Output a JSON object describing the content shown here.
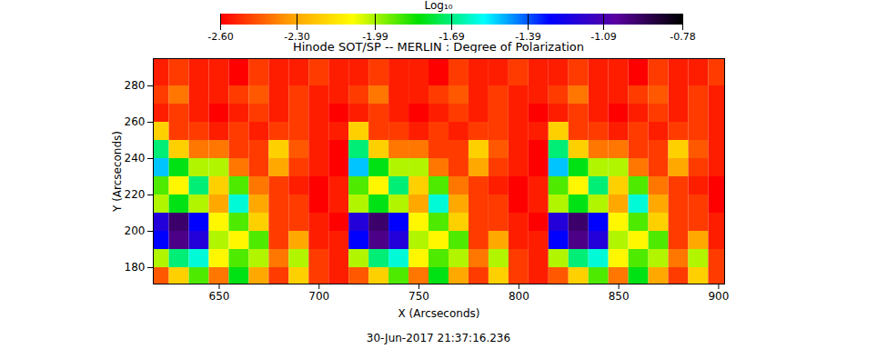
{
  "chart_data": {
    "type": "heatmap",
    "title": "Hinode SOT/SP -- MERLIN : Degree of Polarization",
    "x_label": "X (Arcseconds)",
    "y_label": "Y (Arcseconds)",
    "caption": "30-Jun-2017 21:37:16.236",
    "xlim": [
      617,
      903
    ],
    "ylim": [
      171,
      295
    ],
    "xticks": [
      650,
      700,
      750,
      800,
      850,
      900
    ],
    "yticks": [
      180,
      200,
      220,
      240,
      260,
      280
    ],
    "x": [
      620,
      630,
      640,
      650,
      660,
      670,
      680,
      690,
      700,
      710,
      720,
      730,
      740,
      750,
      760,
      770,
      780,
      790,
      800,
      810,
      820,
      830,
      840,
      850,
      860,
      870,
      880,
      890,
      900
    ],
    "y": [
      175,
      185,
      195,
      205,
      215,
      225,
      235,
      245,
      255,
      265,
      275,
      285,
      295
    ],
    "z": [
      [
        -2.45,
        -2.2,
        -1.9,
        -2.4,
        -1.8,
        -2.3,
        -2.5,
        -2.2,
        -2.5,
        -2.55,
        -2.45,
        -2.2,
        -1.9,
        -2.4,
        -1.8,
        -2.3,
        -2.5,
        -2.2,
        -2.5,
        -2.55,
        -2.45,
        -2.2,
        -1.9,
        -2.4,
        -1.8,
        -2.3,
        -2.5,
        -2.2,
        -2.5
      ],
      [
        -2.0,
        -1.7,
        -1.6,
        -2.1,
        -1.9,
        -2.0,
        -2.4,
        -2.0,
        -2.5,
        -2.55,
        -2.0,
        -1.7,
        -1.6,
        -2.1,
        -1.9,
        -2.0,
        -2.4,
        -2.0,
        -2.5,
        -2.55,
        -2.0,
        -1.7,
        -1.6,
        -2.1,
        -1.9,
        -2.0,
        -2.4,
        -2.0,
        -2.5
      ],
      [
        -1.3,
        -1.0,
        -1.2,
        -2.0,
        -2.1,
        -1.9,
        -2.5,
        -2.3,
        -2.55,
        -2.55,
        -1.3,
        -1.0,
        -1.2,
        -2.0,
        -2.1,
        -1.9,
        -2.5,
        -2.3,
        -2.55,
        -2.55,
        -1.3,
        -1.0,
        -1.2,
        -2.0,
        -2.1,
        -1.9,
        -2.5,
        -2.3,
        -2.55
      ],
      [
        -1.2,
        -0.95,
        -1.3,
        -2.1,
        -1.9,
        -2.2,
        -2.5,
        -2.5,
        -2.55,
        -2.6,
        -1.2,
        -0.95,
        -1.3,
        -2.1,
        -1.9,
        -2.2,
        -2.5,
        -2.5,
        -2.55,
        -2.6,
        -1.2,
        -0.95,
        -1.3,
        -2.1,
        -1.9,
        -2.2,
        -2.5,
        -2.5,
        -2.55
      ],
      [
        -2.0,
        -1.8,
        -2.0,
        -2.3,
        -1.6,
        -2.3,
        -2.5,
        -2.5,
        -2.6,
        -2.55,
        -2.0,
        -1.8,
        -2.0,
        -2.3,
        -1.6,
        -2.3,
        -2.5,
        -2.5,
        -2.6,
        -2.55,
        -2.0,
        -1.8,
        -2.0,
        -2.3,
        -1.6,
        -2.3,
        -2.5,
        -2.5,
        -2.6
      ],
      [
        -1.9,
        -2.1,
        -1.7,
        -2.2,
        -1.9,
        -2.4,
        -2.5,
        -2.55,
        -2.6,
        -2.55,
        -1.9,
        -2.1,
        -1.7,
        -2.2,
        -1.9,
        -2.4,
        -2.5,
        -2.55,
        -2.6,
        -2.55,
        -1.9,
        -2.1,
        -1.7,
        -2.2,
        -1.9,
        -2.4,
        -2.5,
        -2.55,
        -2.6
      ],
      [
        -1.5,
        -1.8,
        -2.0,
        -2.0,
        -2.4,
        -2.5,
        -2.3,
        -2.5,
        -2.55,
        -2.6,
        -1.5,
        -1.8,
        -2.0,
        -2.0,
        -2.4,
        -2.5,
        -2.3,
        -2.5,
        -2.55,
        -2.6,
        -1.5,
        -1.8,
        -2.0,
        -2.0,
        -2.4,
        -2.5,
        -2.3,
        -2.5,
        -2.55
      ],
      [
        -1.7,
        -2.2,
        -2.4,
        -2.4,
        -2.5,
        -2.5,
        -2.2,
        -2.45,
        -2.55,
        -2.6,
        -1.7,
        -2.2,
        -2.4,
        -2.4,
        -2.5,
        -2.5,
        -2.2,
        -2.45,
        -2.55,
        -2.6,
        -1.7,
        -2.2,
        -2.4,
        -2.4,
        -2.5,
        -2.5,
        -2.2,
        -2.45,
        -2.55
      ],
      [
        -2.2,
        -2.5,
        -2.5,
        -2.55,
        -2.5,
        -2.55,
        -2.5,
        -2.5,
        -2.55,
        -2.55,
        -2.2,
        -2.5,
        -2.5,
        -2.55,
        -2.5,
        -2.55,
        -2.5,
        -2.5,
        -2.55,
        -2.55,
        -2.2,
        -2.5,
        -2.5,
        -2.55,
        -2.5,
        -2.55,
        -2.5,
        -2.5,
        -2.55
      ],
      [
        -2.55,
        -2.5,
        -2.55,
        -2.6,
        -2.55,
        -2.5,
        -2.55,
        -2.5,
        -2.55,
        -2.6,
        -2.55,
        -2.5,
        -2.55,
        -2.6,
        -2.55,
        -2.5,
        -2.55,
        -2.5,
        -2.55,
        -2.6,
        -2.55,
        -2.5,
        -2.55,
        -2.6,
        -2.55,
        -2.5,
        -2.55,
        -2.5,
        -2.55
      ],
      [
        -2.5,
        -2.4,
        -2.55,
        -2.55,
        -2.5,
        -2.45,
        -2.55,
        -2.5,
        -2.55,
        -2.55,
        -2.5,
        -2.4,
        -2.55,
        -2.55,
        -2.5,
        -2.45,
        -2.55,
        -2.5,
        -2.55,
        -2.55,
        -2.5,
        -2.4,
        -2.55,
        -2.55,
        -2.5,
        -2.45,
        -2.55,
        -2.5,
        -2.55
      ],
      [
        -2.55,
        -2.5,
        -2.55,
        -2.55,
        -2.6,
        -2.5,
        -2.55,
        -2.55,
        -2.5,
        -2.55,
        -2.55,
        -2.5,
        -2.55,
        -2.55,
        -2.6,
        -2.5,
        -2.55,
        -2.55,
        -2.5,
        -2.55,
        -2.55,
        -2.5,
        -2.55,
        -2.55,
        -2.6,
        -2.5,
        -2.55,
        -2.55,
        -2.5
      ],
      [
        -2.55,
        -2.5,
        -2.55,
        -2.55,
        -2.6,
        -2.5,
        -2.55,
        -2.55,
        -2.5,
        -2.55,
        -2.55,
        -2.5,
        -2.55,
        -2.55,
        -2.6,
        -2.5,
        -2.55,
        -2.55,
        -2.5,
        -2.55,
        -2.55,
        -2.5,
        -2.55,
        -2.55,
        -2.6,
        -2.5,
        -2.55,
        -2.55,
        -2.5
      ]
    ],
    "colorbar": {
      "label": "Log₁₀",
      "range": [
        -2.6,
        -0.78
      ],
      "ticks": [
        {
          "value": -2.6,
          "label": "-2.60"
        },
        {
          "value": -2.3,
          "label": "-2.30"
        },
        -1.99,
        -1.69,
        -1.39,
        -1.09,
        -0.78
      ]
    }
  }
}
